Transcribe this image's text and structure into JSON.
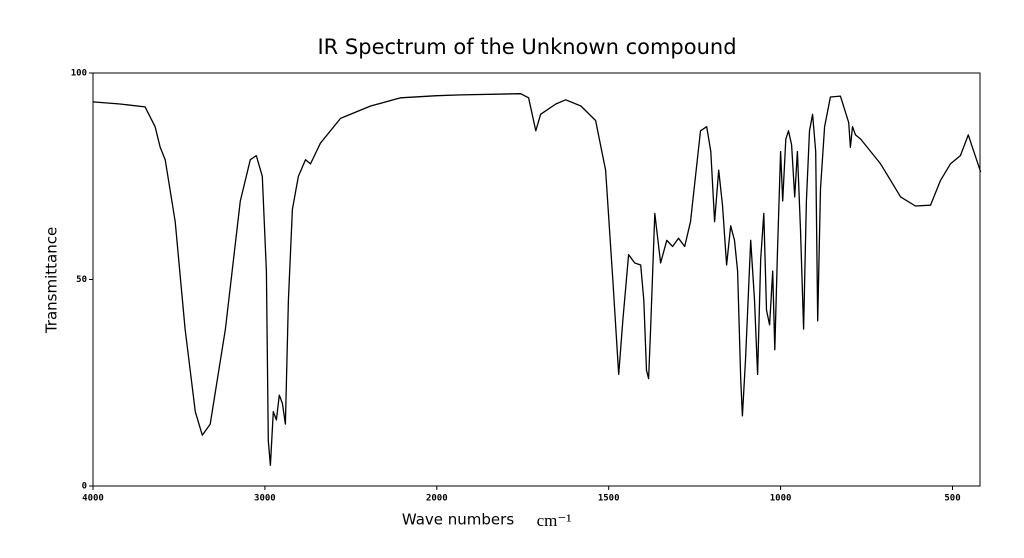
{
  "chart_data": {
    "type": "line",
    "title": "IR Spectrum of the Unknown compound",
    "xlabel": "Wave numbers",
    "xunit": "cm⁻¹",
    "ylabel": "Transmittance",
    "color": "#000000",
    "xlim": [
      4000,
      420
    ],
    "xticks": [
      4000,
      3000,
      2000,
      1500,
      1000,
      500
    ],
    "ylim": [
      0,
      100
    ],
    "yticks": [
      0,
      50,
      100
    ],
    "x": [
      4000,
      3843,
      3697,
      3639,
      3609,
      3580,
      3522,
      3464,
      3405,
      3364,
      3318,
      3230,
      3143,
      3085,
      3050,
      3015,
      2991,
      2980,
      2968,
      2951,
      2933,
      2916,
      2898,
      2881,
      2863,
      2840,
      2805,
      2764,
      2735,
      2677,
      2560,
      2385,
      2210,
      2000,
      1930,
      1756,
      1733,
      1712,
      1698,
      1654,
      1625,
      1581,
      1538,
      1509,
      1488,
      1471,
      1459,
      1442,
      1424,
      1407,
      1398,
      1390,
      1384,
      1378,
      1366,
      1349,
      1331,
      1314,
      1297,
      1279,
      1262,
      1233,
      1215,
      1203,
      1192,
      1180,
      1169,
      1157,
      1145,
      1134,
      1125,
      1116,
      1111,
      1102,
      1087,
      1076,
      1067,
      1058,
      1049,
      1041,
      1032,
      1023,
      1017,
      1009,
      1000,
      994,
      985,
      977,
      968,
      959,
      951,
      942,
      933,
      925,
      916,
      907,
      898,
      892,
      884,
      872,
      855,
      826,
      802,
      797,
      791,
      782,
      767,
      709,
      651,
      608,
      564,
      535,
      506,
      477,
      454,
      442,
      418
    ],
    "values": [
      93,
      92.5,
      91.8,
      87,
      82,
      79,
      64,
      38,
      18,
      12.3,
      15,
      38,
      69,
      79,
      80,
      75,
      52,
      11,
      5,
      18,
      16,
      22,
      20,
      15,
      45,
      67,
      75,
      79,
      78,
      83,
      89,
      92,
      94,
      94.5,
      94.7,
      95,
      94,
      86,
      90,
      92.5,
      93.5,
      92,
      88.5,
      76.5,
      50,
      27,
      40,
      56,
      54,
      53.5,
      45,
      28,
      26,
      38,
      66,
      54,
      59.5,
      58,
      60,
      58,
      64,
      86,
      87,
      81,
      64,
      76.5,
      68,
      53.5,
      63,
      59.5,
      52,
      26,
      17,
      30.5,
      59.5,
      45,
      27,
      55,
      66,
      42.6,
      39,
      52,
      33,
      57,
      81,
      69,
      84,
      86,
      82.6,
      70,
      81,
      62,
      38,
      69,
      86,
      90,
      81,
      40,
      72,
      87,
      94.2,
      94.4,
      88,
      82,
      87,
      85,
      84,
      78,
      70,
      67.8,
      68,
      74,
      78,
      80,
      85,
      82,
      76
    ]
  }
}
